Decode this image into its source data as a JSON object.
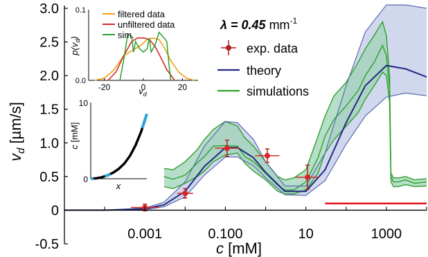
{
  "chart_data": [
    {
      "type": "line",
      "xlabel": "c",
      "xlabel_unit": "[mM]",
      "ylabel": "v",
      "ylabel_sub": "d",
      "ylabel_unit": "[µm/s]",
      "x_scale": "log",
      "xlim": [
        1e-05,
        10000
      ],
      "ylim": [
        -0.5,
        3.0
      ],
      "x_ticks": [
        {
          "v": 0.001,
          "label": "0.001"
        },
        {
          "v": 0.1,
          "label": "0.100"
        },
        {
          "v": 10,
          "label": "10"
        },
        {
          "v": 1000,
          "label": "1000"
        }
      ],
      "y_ticks": [
        {
          "v": -0.5,
          "label": "-0.5"
        },
        {
          "v": 0,
          "label": "0"
        },
        {
          "v": 0.5,
          "label": "0.5"
        },
        {
          "v": 1.0,
          "label": "1.0"
        },
        {
          "v": 1.5,
          "label": "1.5"
        },
        {
          "v": 2.0,
          "label": "2.0"
        },
        {
          "v": 2.5,
          "label": "2.5"
        },
        {
          "v": 3.0,
          "label": "3.0"
        }
      ],
      "annotation": {
        "prefix": "λ = 0.45",
        "unit": " mm",
        "sup": "-1"
      },
      "legend": [
        "exp. data",
        "theory",
        "simulations"
      ],
      "legend_position": "top-right",
      "colors": {
        "exp": "#d62728",
        "theory": "#1f2a80",
        "theory_band": "#c9d1ea",
        "sim": "#2ca02c",
        "sim_band": "#9fd3b6",
        "threshold": "#e0101a"
      },
      "exp_data": [
        {
          "x": 0.001,
          "y": 0.04,
          "yerr": 0.05,
          "xerr_dec": 0.35
        },
        {
          "x": 0.01,
          "y": 0.25,
          "yerr": 0.07,
          "xerr_dec": 0.2
        },
        {
          "x": 0.11,
          "y": 0.92,
          "yerr": 0.12,
          "xerr_dec": 0.3
        },
        {
          "x": 1.1,
          "y": 0.81,
          "yerr": 0.1,
          "xerr_dec": 0.3
        },
        {
          "x": 11,
          "y": 0.49,
          "yerr": 0.18,
          "xerr_dec": 0.3
        }
      ],
      "theory": {
        "x": [
          1e-05,
          0.0001,
          0.001,
          0.003,
          0.01,
          0.03,
          0.1,
          0.2,
          0.5,
          1,
          3,
          10,
          30,
          100,
          300,
          1000,
          3000,
          10000
        ],
        "mid": [
          0.0,
          0.0,
          0.02,
          0.08,
          0.28,
          0.65,
          0.93,
          0.93,
          0.78,
          0.56,
          0.28,
          0.28,
          0.6,
          1.3,
          1.85,
          2.15,
          2.1,
          1.98
        ],
        "upper": [
          0.0,
          0.0,
          0.03,
          0.12,
          0.42,
          0.95,
          1.32,
          1.3,
          1.05,
          0.72,
          0.36,
          0.36,
          0.85,
          1.85,
          2.65,
          3.05,
          3.05,
          3.0
        ],
        "lower": [
          0.0,
          0.0,
          0.01,
          0.05,
          0.2,
          0.52,
          0.79,
          0.79,
          0.66,
          0.48,
          0.23,
          0.22,
          0.44,
          0.98,
          1.4,
          1.68,
          1.74,
          1.7
        ]
      },
      "simulations": {
        "x": [
          0.003,
          0.005,
          0.01,
          0.02,
          0.03,
          0.05,
          0.1,
          0.2,
          0.3,
          0.5,
          1,
          2,
          3,
          5,
          10,
          20,
          30,
          50,
          100,
          200,
          300,
          500,
          800,
          1000,
          1200,
          1300,
          1500,
          2000,
          3000,
          5000,
          10000
        ],
        "mid": [
          0.5,
          0.46,
          0.52,
          0.7,
          0.8,
          0.95,
          0.96,
          0.95,
          0.8,
          0.72,
          0.55,
          0.37,
          0.3,
          0.3,
          0.42,
          0.78,
          1.1,
          1.35,
          1.55,
          1.78,
          2.0,
          2.2,
          2.45,
          2.3,
          1.8,
          0.5,
          0.42,
          0.42,
          0.45,
          0.4,
          0.42
        ],
        "upper": [
          0.62,
          0.6,
          0.72,
          0.9,
          1.05,
          1.2,
          1.32,
          1.25,
          1.08,
          0.95,
          0.72,
          0.5,
          0.45,
          0.48,
          0.6,
          1.1,
          1.4,
          1.7,
          1.9,
          2.2,
          2.4,
          2.6,
          2.8,
          2.6,
          2.0,
          0.55,
          0.48,
          0.48,
          0.5,
          0.45,
          0.47
        ],
        "lower": [
          0.35,
          0.32,
          0.4,
          0.5,
          0.58,
          0.72,
          0.82,
          0.85,
          0.7,
          0.58,
          0.45,
          0.28,
          0.24,
          0.24,
          0.3,
          0.55,
          0.85,
          1.05,
          1.25,
          1.45,
          1.65,
          1.85,
          2.05,
          2.0,
          1.6,
          0.42,
          0.35,
          0.35,
          0.38,
          0.35,
          0.36
        ]
      },
      "threshold_line": {
        "x_from": 30,
        "x_to": 10000,
        "y": 0.1
      }
    },
    {
      "type": "line",
      "xlabel": "v",
      "xlabel_sub": "d",
      "ylabel": "p(v",
      "ylabel_sub": "d",
      "ylabel_close": ")",
      "xlim": [
        -28,
        28
      ],
      "ylim": [
        0,
        0.1
      ],
      "x_ticks": [
        {
          "v": -20,
          "label": "-20"
        },
        {
          "v": 0,
          "label": "0"
        },
        {
          "v": 20,
          "label": "20"
        }
      ],
      "y_ticks": [
        {
          "v": 0,
          "label": "0.0"
        },
        {
          "v": 0.1,
          "label": "0.1"
        }
      ],
      "legend": [
        "filtered data",
        "unfiltered data",
        "sim."
      ],
      "legend_position": "top-right",
      "colors": {
        "filtered": "#f39c12",
        "unfiltered": "#d62728",
        "sim": "#2ca02c"
      },
      "filtered": {
        "x": [
          -25,
          -20,
          -15,
          -10,
          -7,
          -4,
          -1,
          2,
          5,
          8,
          11,
          14,
          18,
          22,
          26
        ],
        "y": [
          0.0,
          0.003,
          0.015,
          0.035,
          0.04,
          0.045,
          0.05,
          0.058,
          0.06,
          0.058,
          0.045,
          0.028,
          0.012,
          0.003,
          0.0
        ]
      },
      "unfiltered": {
        "x": [
          -18,
          -14,
          -10,
          -6,
          -3,
          0,
          3,
          6,
          9,
          12,
          16
        ],
        "y": [
          0.0,
          0.012,
          0.035,
          0.055,
          0.06,
          0.06,
          0.058,
          0.048,
          0.032,
          0.015,
          0.0
        ]
      },
      "sim": {
        "x": [
          -12,
          -10,
          -8,
          -6,
          -5,
          -4,
          -2,
          0,
          2,
          3,
          4,
          6,
          8,
          10,
          12,
          13,
          14
        ],
        "y": [
          0.0,
          0.03,
          0.065,
          0.062,
          0.04,
          0.055,
          0.045,
          0.04,
          0.045,
          0.06,
          0.04,
          0.05,
          0.068,
          0.062,
          0.055,
          0.025,
          0.0
        ]
      }
    },
    {
      "type": "line",
      "xlabel": "x",
      "ylabel": "c",
      "ylabel_unit": "[mM]",
      "xlim": [
        0,
        1
      ],
      "ylim": [
        0,
        10
      ],
      "y_ticks": [
        {
          "v": 0,
          "label": "0"
        },
        {
          "v": 10,
          "label": "10"
        }
      ],
      "colors": {
        "curve": "#000000",
        "highlight": "#29a3d8"
      },
      "curve": {
        "x": [
          0.0,
          0.1,
          0.2,
          0.3,
          0.4,
          0.5,
          0.6,
          0.7,
          0.8,
          0.9,
          1.0
        ],
        "y": [
          0.0,
          0.05,
          0.2,
          0.45,
          0.8,
          1.3,
          2.0,
          3.0,
          4.4,
          6.2,
          8.5
        ]
      },
      "highlights": [
        {
          "x_from": 0.0,
          "x_to": 0.05
        },
        {
          "x_from": 0.25,
          "x_to": 0.35
        },
        {
          "x_from": 0.92,
          "x_to": 1.0
        }
      ]
    }
  ]
}
